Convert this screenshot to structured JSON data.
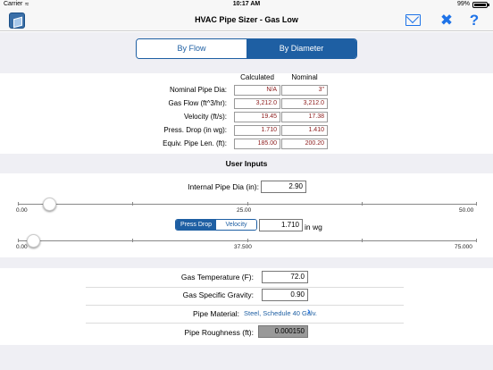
{
  "status_bar": {
    "carrier": "Carrier",
    "time": "10:17 AM",
    "battery": "99%"
  },
  "nav": {
    "title": "HVAC Pipe Sizer - Gas Low",
    "icons": [
      "app-icon",
      "mail-icon",
      "tools-icon",
      "help-icon"
    ],
    "help_glyph": "?"
  },
  "mode_segment": {
    "options": [
      "By Flow",
      "By Diameter"
    ],
    "selected": "By Diameter"
  },
  "results": {
    "columns": [
      "Calculated",
      "Nominal"
    ],
    "rows": [
      {
        "label": "Nominal Pipe Dia:",
        "calculated": "N/A",
        "nominal": "3\""
      },
      {
        "label": "Gas Flow (ft^3/hr):",
        "calculated": "3,212.0",
        "nominal": "3,212.0"
      },
      {
        "label": "Velocity (ft/s):",
        "calculated": "19.45",
        "nominal": "17.38"
      },
      {
        "label": "Press. Drop (in wg):",
        "calculated": "1.710",
        "nominal": "1.410"
      },
      {
        "label": "Equiv. Pipe Len. (ft):",
        "calculated": "185.00",
        "nominal": "200.20"
      }
    ]
  },
  "user_inputs": {
    "header": "User Inputs",
    "pipe_dia_label": "Internal Pipe Dia (in):",
    "pipe_dia_value": "2.90",
    "dia_slider": {
      "min_label": "0.00",
      "mid_label": "25.00",
      "max_label": "50.00",
      "level": 0.058
    },
    "toggle": {
      "options": [
        "Press Drop",
        "Velocity"
      ],
      "selected": "Press Drop"
    },
    "press_value": "1.710",
    "press_unit": "in wg",
    "press_slider": {
      "min_label": "0.00",
      "mid_label": "37.500",
      "max_label": "75.000",
      "level": 0.023
    }
  },
  "properties": {
    "gas_temp_label": "Gas Temperature (F):",
    "gas_temp_value": "72.0",
    "gravity_label": "Gas Specific Gravity:",
    "gravity_value": "0.90",
    "material_label": "Pipe Material:",
    "material_value": "Steel, Schedule 40 Galv.",
    "roughness_label": "Pipe Roughness (ft):",
    "roughness_value": "0.000150"
  },
  "colors": {
    "accent": "#1e5fa3",
    "icon_blue": "#1e73e8",
    "result_text": "#8b1a1a",
    "band": "#efeff4"
  }
}
